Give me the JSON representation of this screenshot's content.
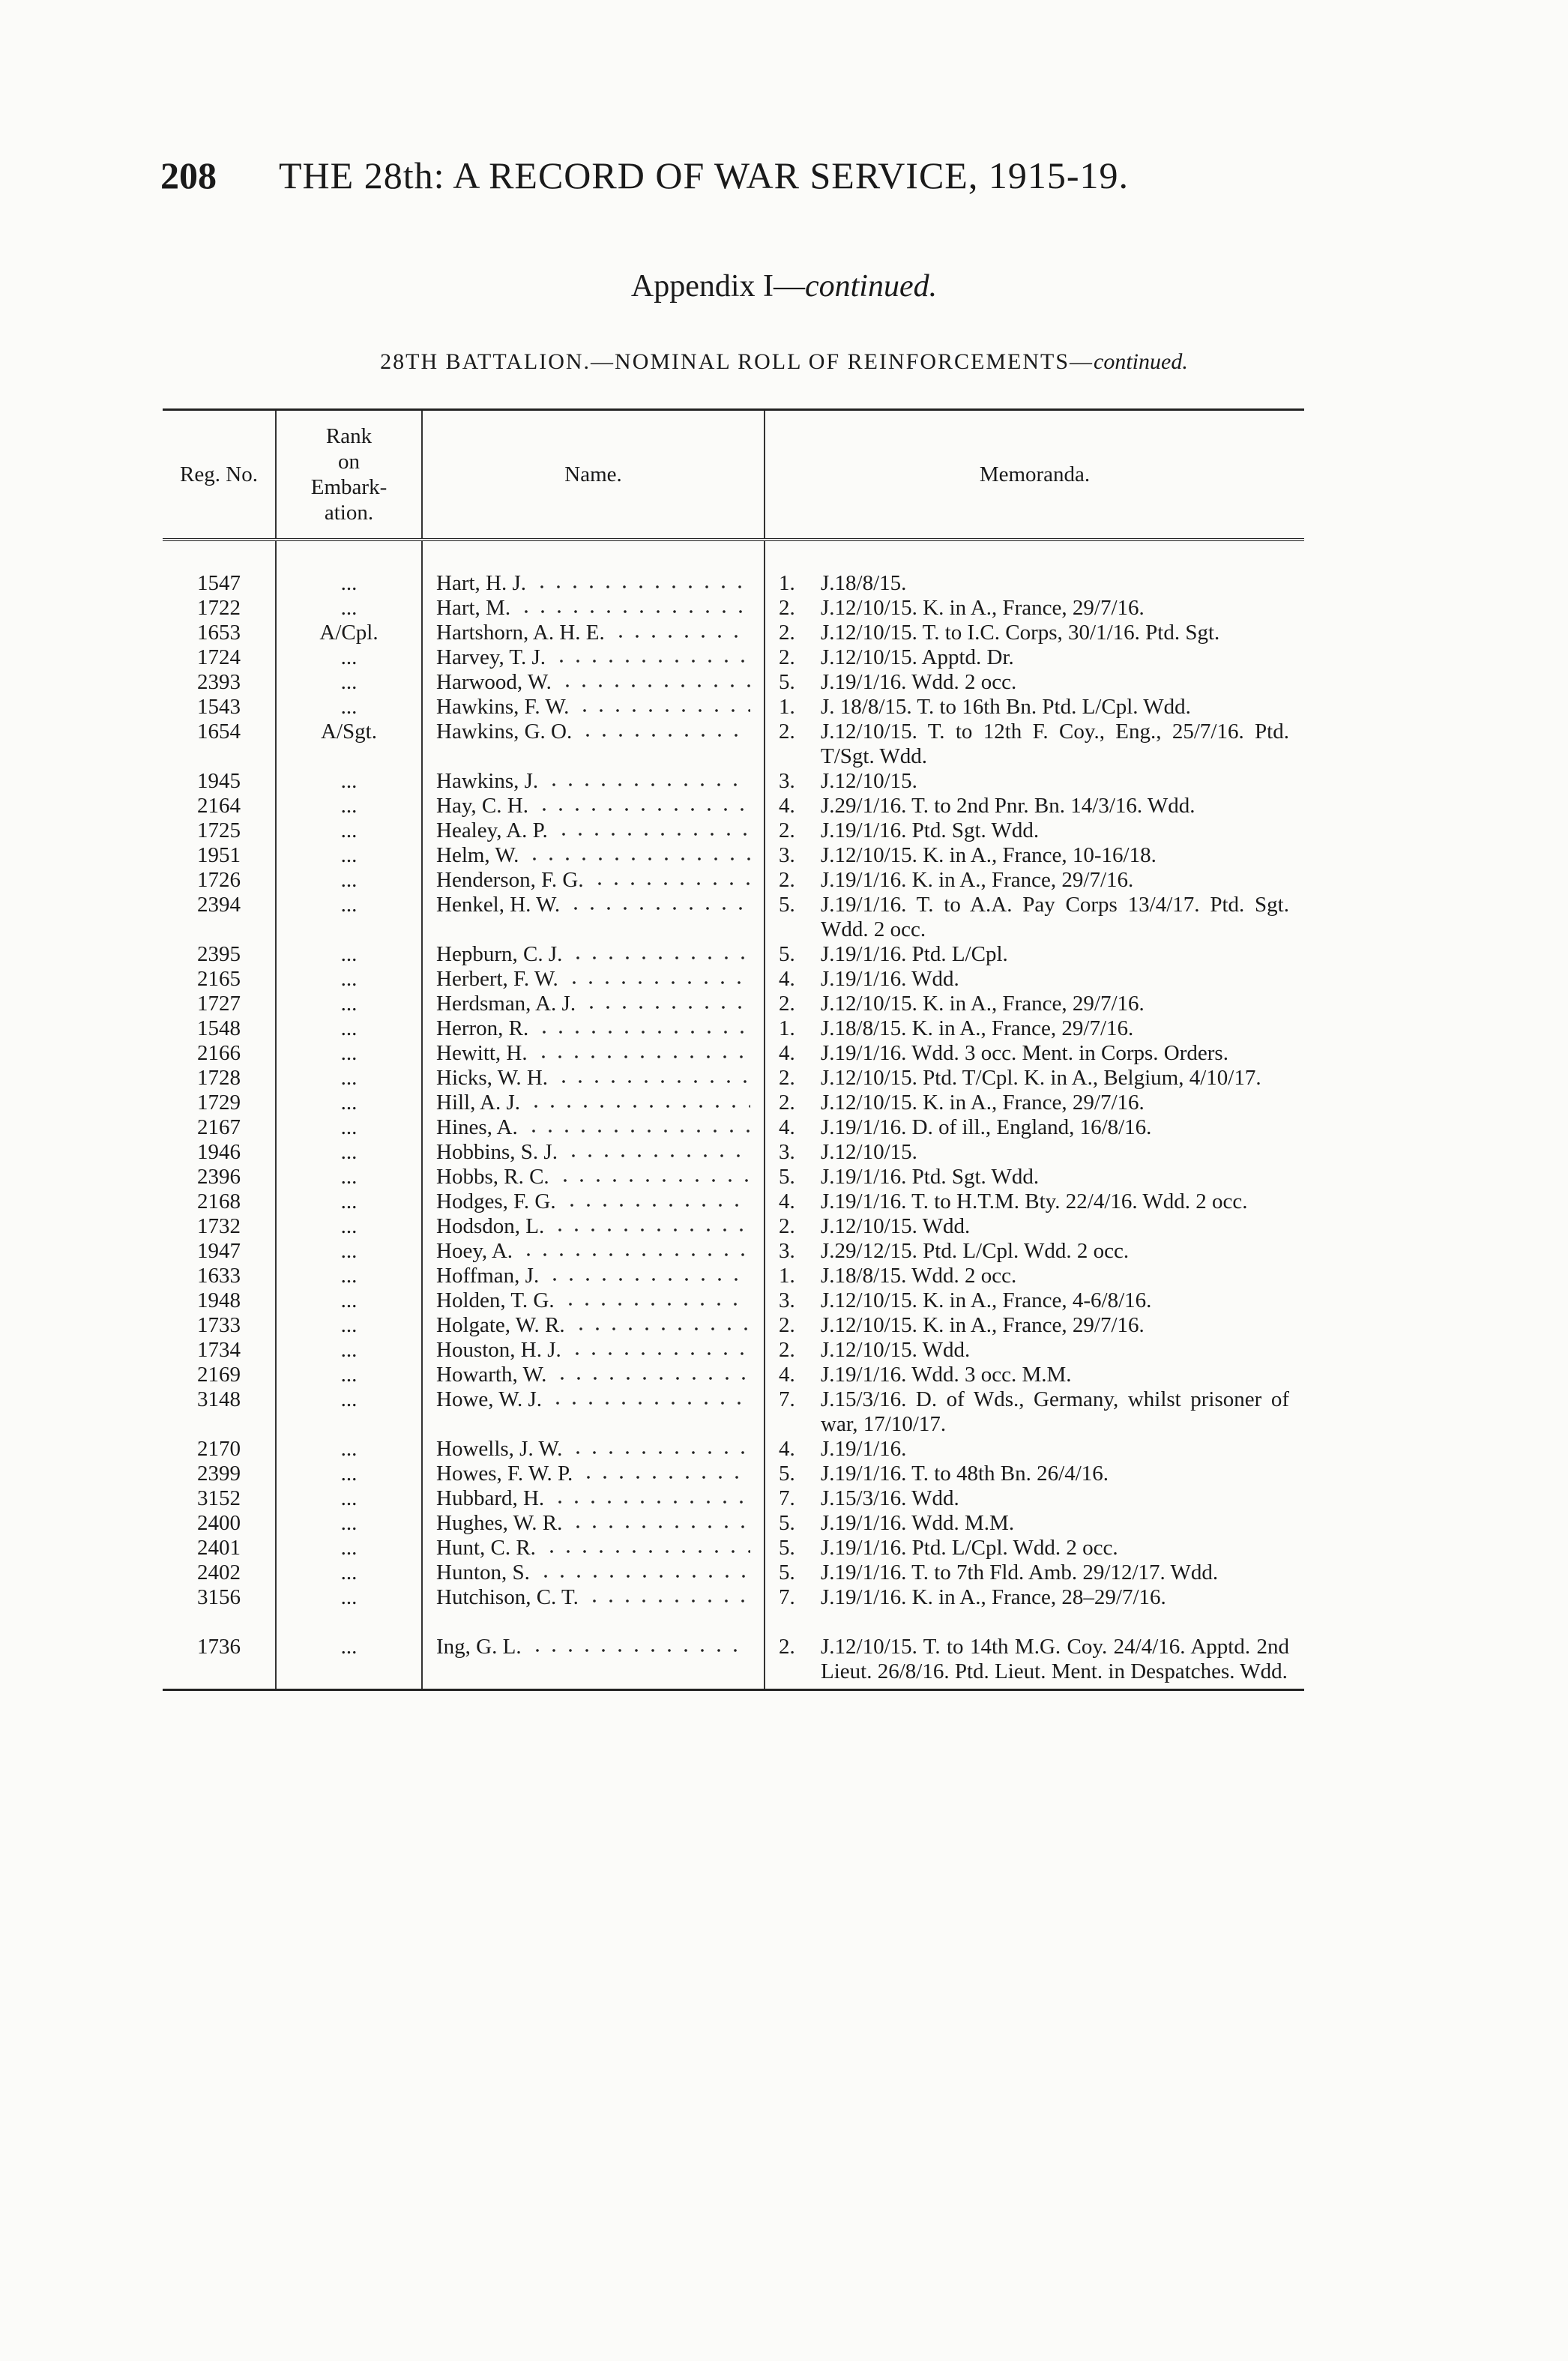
{
  "header": {
    "page_number": "208",
    "title": "THE 28th: A RECORD OF WAR SERVICE, 1915-19."
  },
  "appendix_heading": {
    "text": "Appendix I—",
    "italic": "continued."
  },
  "section_heading": {
    "text": "28TH BATTALION.—NOMINAL ROLL OF REINFORCEMENTS—",
    "italic": "continued."
  },
  "table": {
    "columns": [
      "Reg. No.",
      "Rank on Embark-ation.",
      "Name.",
      "Memoranda."
    ],
    "rows": [
      [
        "1547",
        "...",
        "Hart, H. J.",
        "1.",
        "J.18/8/15."
      ],
      [
        "1722",
        "...",
        "Hart, M.",
        "2.",
        "J.12/10/15. K. in A., France, 29/7/16."
      ],
      [
        "1653",
        "A/Cpl.",
        "Hartshorn, A. H. E.",
        "2.",
        "J.12/10/15. T. to I.C. Corps, 30/1/16. Ptd. Sgt."
      ],
      [
        "1724",
        "...",
        "Harvey, T. J.",
        "2.",
        "J.12/10/15. Apptd. Dr."
      ],
      [
        "2393",
        "...",
        "Harwood, W.",
        "5.",
        "J.19/1/16. Wdd. 2 occ."
      ],
      [
        "1543",
        "...",
        "Hawkins, F. W.",
        "1.",
        "J. 18/8/15. T. to 16th Bn. Ptd. L/Cpl. Wdd."
      ],
      [
        "1654",
        "A/Sgt.",
        "Hawkins, G. O.",
        "2.",
        "J.12/10/15. T. to 12th F. Coy., Eng., 25/7/16. Ptd. T/Sgt. Wdd."
      ],
      [
        "1945",
        "...",
        "Hawkins, J.",
        "3.",
        "J.12/10/15."
      ],
      [
        "2164",
        "...",
        "Hay, C. H.",
        "4.",
        "J.29/1/16. T. to 2nd Pnr. Bn. 14/3/16. Wdd."
      ],
      [
        "1725",
        "...",
        "Healey, A. P.",
        "2.",
        "J.19/1/16. Ptd. Sgt. Wdd."
      ],
      [
        "1951",
        "...",
        "Helm, W.",
        "3.",
        "J.12/10/15. K. in A., France, 10-16/18."
      ],
      [
        "1726",
        "...",
        "Henderson, F. G.",
        "2.",
        "J.19/1/16. K. in A., France, 29/7/16."
      ],
      [
        "2394",
        "...",
        "Henkel, H. W.",
        "5.",
        "J.19/1/16. T. to A.A. Pay Corps 13/4/17. Ptd. Sgt. Wdd. 2 occ."
      ],
      [
        "2395",
        "...",
        "Hepburn, C. J.",
        "5.",
        "J.19/1/16. Ptd. L/Cpl."
      ],
      [
        "2165",
        "...",
        "Herbert, F. W.",
        "4.",
        "J.19/1/16. Wdd."
      ],
      [
        "1727",
        "...",
        "Herdsman, A. J.",
        "2.",
        "J.12/10/15. K. in A., France, 29/7/16."
      ],
      [
        "1548",
        "...",
        "Herron, R.",
        "1.",
        "J.18/8/15. K. in A., France, 29/7/16."
      ],
      [
        "2166",
        "...",
        "Hewitt, H.",
        "4.",
        "J.19/1/16. Wdd. 3 occ. Ment. in Corps. Orders."
      ],
      [
        "1728",
        "...",
        "Hicks, W. H.",
        "2.",
        "J.12/10/15. Ptd. T/Cpl. K. in A., Belgium, 4/10/17."
      ],
      [
        "1729",
        "...",
        "Hill, A. J.",
        "2.",
        "J.12/10/15. K. in A., France, 29/7/16."
      ],
      [
        "2167",
        "...",
        "Hines, A.",
        "4.",
        "J.19/1/16. D. of ill., England, 16/8/16."
      ],
      [
        "1946",
        "...",
        "Hobbins, S. J.",
        "3.",
        "J.12/10/15."
      ],
      [
        "2396",
        "...",
        "Hobbs, R. C.",
        "5.",
        "J.19/1/16. Ptd. Sgt. Wdd."
      ],
      [
        "2168",
        "...",
        "Hodges, F. G.",
        "4.",
        "J.19/1/16. T. to H.T.M. Bty. 22/4/16. Wdd. 2 occ."
      ],
      [
        "1732",
        "...",
        "Hodsdon, L.",
        "2.",
        "J.12/10/15. Wdd."
      ],
      [
        "1947",
        "...",
        "Hoey, A.",
        "3.",
        "J.29/12/15. Ptd. L/Cpl. Wdd. 2 occ."
      ],
      [
        "1633",
        "...",
        "Hoffman, J.",
        "1.",
        "J.18/8/15. Wdd. 2 occ."
      ],
      [
        "1948",
        "...",
        "Holden, T. G.",
        "3.",
        "J.12/10/15. K. in A., France, 4-6/8/16."
      ],
      [
        "1733",
        "...",
        "Holgate, W. R.",
        "2.",
        "J.12/10/15. K. in A., France, 29/7/16."
      ],
      [
        "1734",
        "...",
        "Houston, H. J.",
        "2.",
        "J.12/10/15. Wdd."
      ],
      [
        "2169",
        "...",
        "Howarth, W.",
        "4.",
        "J.19/1/16. Wdd. 3 occ. M.M."
      ],
      [
        "3148",
        "...",
        "Howe, W. J.",
        "7.",
        "J.15/3/16. D. of Wds., Germany, whilst prisoner of war, 17/10/17."
      ],
      [
        "2170",
        "...",
        "Howells, J. W.",
        "4.",
        "J.19/1/16."
      ],
      [
        "2399",
        "...",
        "Howes, F. W. P.",
        "5.",
        "J.19/1/16. T. to 48th Bn. 26/4/16."
      ],
      [
        "3152",
        "...",
        "Hubbard, H.",
        "7.",
        "J.15/3/16. Wdd."
      ],
      [
        "2400",
        "...",
        "Hughes, W. R.",
        "5.",
        "J.19/1/16. Wdd. M.M."
      ],
      [
        "2401",
        "...",
        "Hunt, C. R.",
        "5.",
        "J.19/1/16. Ptd. L/Cpl. Wdd. 2 occ."
      ],
      [
        "2402",
        "...",
        "Hunton, S.",
        "5.",
        "J.19/1/16. T. to 7th Fld. Amb. 29/12/17. Wdd."
      ],
      [
        "3156",
        "...",
        "Hutchison, C. T.",
        "7.",
        "J.19/1/16. K. in A., France, 28–29/7/16."
      ],
      [
        "1736",
        "...",
        "Ing, G. L.",
        "2.",
        "J.12/10/15. T. to 14th M.G. Coy. 24/4/16. Apptd. 2nd Lieut. 26/8/16. Ptd. Lieut. Ment. in Despatches. Wdd."
      ]
    ]
  }
}
